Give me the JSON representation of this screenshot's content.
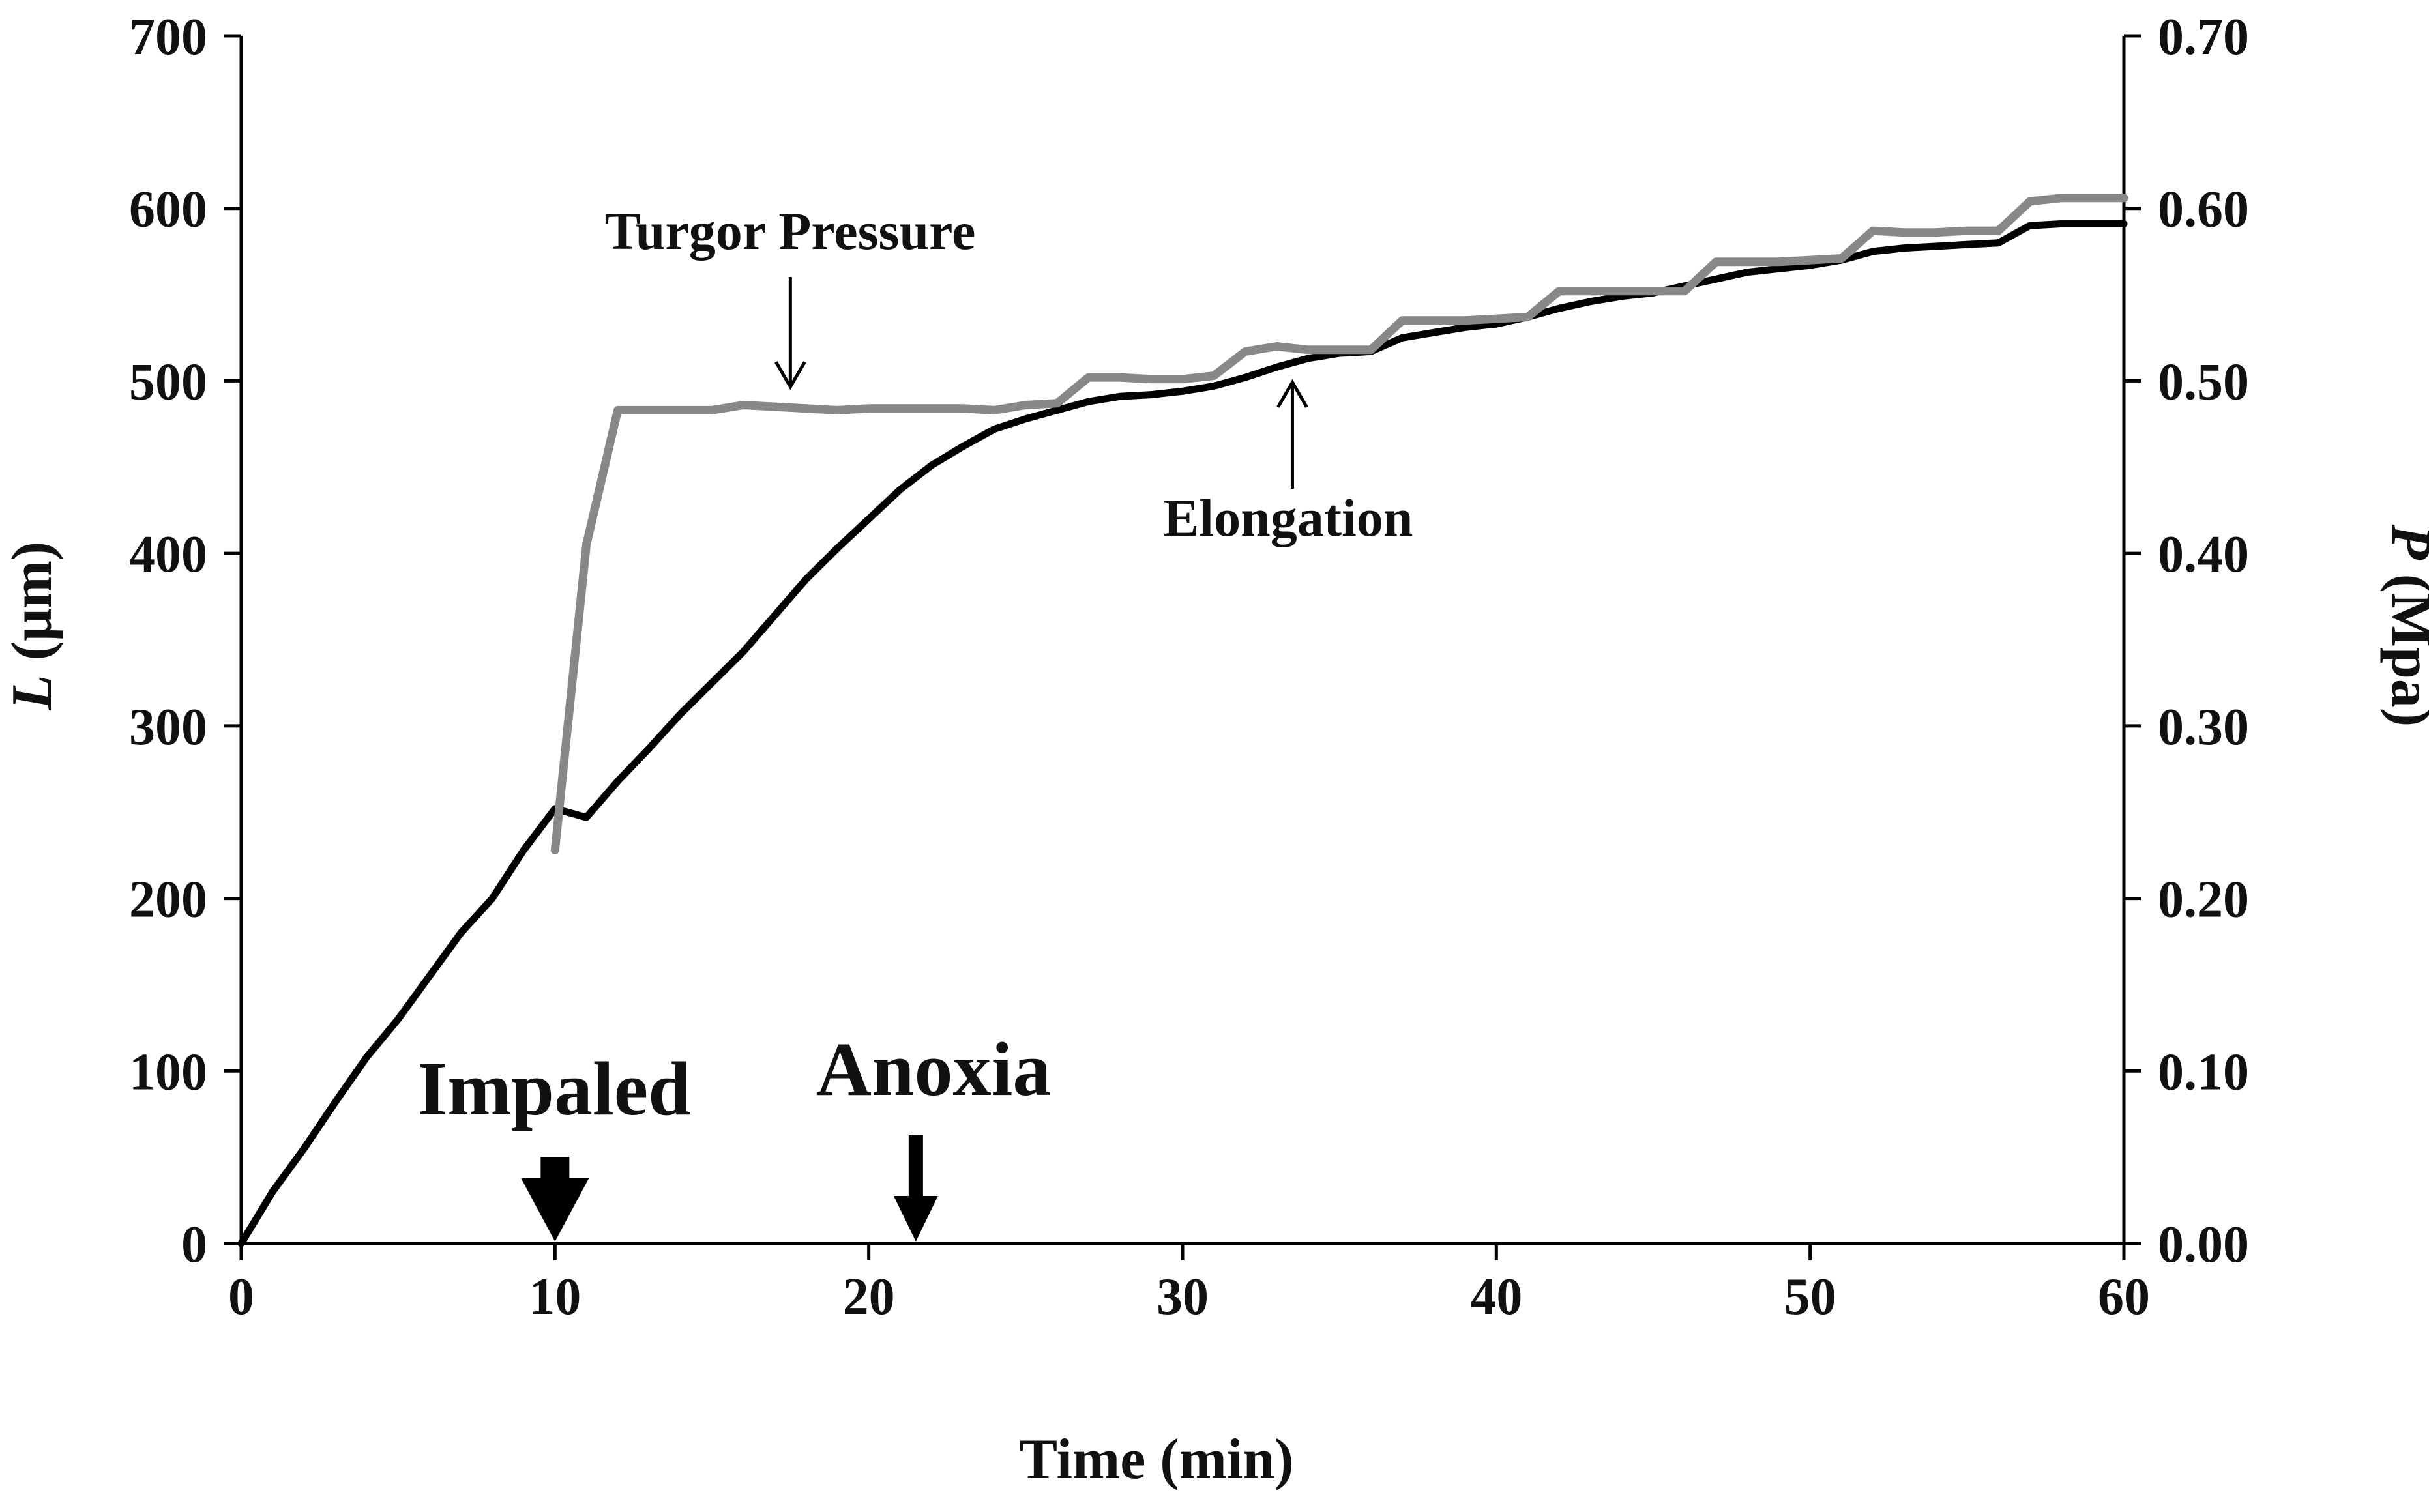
{
  "chart_data": {
    "type": "line",
    "title": "",
    "xlabel": "Time (min)",
    "ylabel_left": {
      "italic": "L",
      "rest": " (µm)"
    },
    "ylabel_right": {
      "italic": "P",
      "rest": " (Mpa)"
    },
    "xlim": [
      0,
      60
    ],
    "ylim_left": [
      0,
      700
    ],
    "ylim_right": [
      0,
      0.7
    ],
    "x_ticks": [
      "0",
      "10",
      "20",
      "30",
      "40",
      "50",
      "60"
    ],
    "y_left_ticks": [
      "0",
      "100",
      "200",
      "300",
      "400",
      "500",
      "600",
      "700"
    ],
    "y_right_ticks": [
      "0.00",
      "0.10",
      "0.20",
      "0.30",
      "0.40",
      "0.50",
      "0.60",
      "0.70"
    ],
    "grid": false,
    "series": [
      {
        "name": "Elongation",
        "axis": "left",
        "color": "#000000",
        "x": [
          0,
          1,
          2,
          3,
          4,
          5,
          6,
          7,
          8,
          9,
          10,
          11,
          12,
          13,
          14,
          15,
          16,
          17,
          18,
          19,
          20,
          21,
          22,
          23,
          24,
          25,
          26,
          27,
          28,
          29,
          30,
          31,
          32,
          33,
          34,
          35,
          36,
          37,
          38,
          39,
          40,
          41,
          42,
          43,
          44,
          45,
          46,
          47,
          48,
          49,
          50,
          51,
          52,
          53,
          54,
          55,
          56,
          57,
          58,
          59,
          60
        ],
        "values": [
          0,
          30,
          55,
          82,
          108,
          130,
          155,
          180,
          200,
          228,
          252,
          247,
          268,
          287,
          307,
          325,
          343,
          364,
          385,
          403,
          420,
          437,
          451,
          462,
          472,
          478,
          483,
          488,
          491,
          492,
          494,
          497,
          502,
          508,
          513,
          516,
          517,
          525,
          528,
          531,
          533,
          537,
          542,
          546,
          549,
          551,
          555,
          559,
          563,
          565,
          567,
          570,
          575,
          577,
          578,
          579,
          580,
          590,
          591,
          591,
          591
        ]
      },
      {
        "name": "Turgor Pressure",
        "axis": "right",
        "color": "#888888",
        "x": [
          10,
          11,
          12,
          13,
          14,
          15,
          16,
          17,
          18,
          19,
          20,
          21,
          22,
          23,
          24,
          25,
          26,
          27,
          28,
          29,
          30,
          31,
          32,
          33,
          34,
          35,
          36,
          37,
          38,
          39,
          40,
          41,
          42,
          43,
          44,
          45,
          46,
          47,
          48,
          49,
          50,
          51,
          52,
          53,
          54,
          55,
          56,
          57,
          58,
          59,
          60
        ],
        "values": [
          0.228,
          0.405,
          0.483,
          0.483,
          0.483,
          0.483,
          0.486,
          0.485,
          0.484,
          0.483,
          0.484,
          0.484,
          0.484,
          0.484,
          0.483,
          0.486,
          0.487,
          0.502,
          0.502,
          0.501,
          0.501,
          0.503,
          0.517,
          0.52,
          0.518,
          0.518,
          0.518,
          0.535,
          0.535,
          0.535,
          0.536,
          0.537,
          0.552,
          0.552,
          0.552,
          0.552,
          0.552,
          0.569,
          0.569,
          0.569,
          0.57,
          0.571,
          0.587,
          0.586,
          0.586,
          0.587,
          0.587,
          0.604,
          0.606,
          0.606,
          0.606
        ]
      }
    ],
    "annotations": [
      {
        "id": "turgor-label",
        "text": "Turgor Pressure",
        "points_to": {
          "series": "Turgor Pressure",
          "x": 17.5
        }
      },
      {
        "id": "elongation-label",
        "text": "Elongation",
        "points_to": {
          "series": "Elongation",
          "x": 33.5
        }
      },
      {
        "id": "impaled-label",
        "text": "Impaled",
        "marks_x": 10
      },
      {
        "id": "anoxia-label",
        "text": "Anoxia",
        "marks_x": 21.5
      }
    ]
  }
}
